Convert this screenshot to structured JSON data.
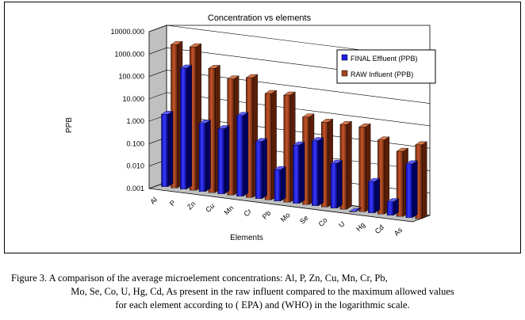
{
  "chart_data": {
    "type": "bar",
    "title": "Concentration vs elements",
    "xlabel": "Elements",
    "ylabel": "PPB",
    "yscale": "log",
    "ylim": [
      0.001,
      10000
    ],
    "yticks": [
      "0.001",
      "0.010",
      "0.100",
      "1.000",
      "10.000",
      "100.000",
      "1000.000",
      "10000.000"
    ],
    "legend_position": "right",
    "categories": [
      "Al",
      "P",
      "Zn",
      "Cu",
      "Mn",
      "Cr",
      "Pb",
      "Mo",
      "Se",
      "Co",
      "U",
      "Hg",
      "Cd",
      "As"
    ],
    "series": [
      {
        "name": "FINAL Effluent (PPB)",
        "color": "#1f1fe6",
        "values": [
          1.7,
          250,
          1.1,
          0.8,
          4,
          0.35,
          0.025,
          0.4,
          0.8,
          0.1,
          0.0009,
          0.025,
          0.004,
          0.25
        ]
      },
      {
        "name": "RAW Influent (PPB)",
        "color": "#a8431c",
        "values": [
          2500,
          2500,
          350,
          150,
          220,
          55,
          60,
          8,
          6,
          6,
          6,
          2,
          0.8,
          2
        ]
      }
    ]
  },
  "caption": {
    "line1": "Figure 3. A comparison of the average microelement concentrations: Al, P, Zn, Cu, Mn, Cr, Pb,",
    "line2": "Mo, Se, Co, U, Hg, Cd, As present in the raw influent compared to the maximum allowed values",
    "line3": "for each element according to ( EPA) and (WHO) in the logarithmic scale."
  }
}
